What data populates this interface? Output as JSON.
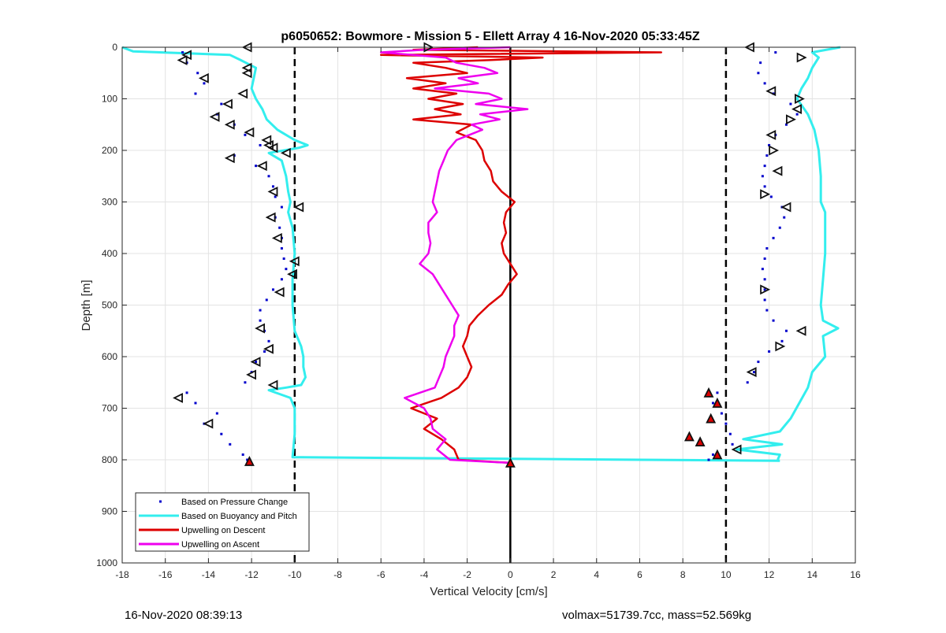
{
  "chart_data": {
    "type": "scatter",
    "title": "p6050652: Bowmore - Mission 5 - Ellett Array 4 16-Nov-2020 05:33:45Z",
    "xlabel": "Vertical Velocity [cm/s]",
    "ylabel": "Depth [m]",
    "xlim": [
      -18,
      16
    ],
    "ylim": [
      0,
      1000
    ],
    "y_reversed": true,
    "grid": true,
    "x_ticks": [
      "-18",
      "-16",
      "-14",
      "-12",
      "-10",
      "-8",
      "-6",
      "-4",
      "-2",
      "0",
      "2",
      "4",
      "6",
      "8",
      "10",
      "12",
      "14",
      "16"
    ],
    "y_ticks": [
      "0",
      "100",
      "200",
      "300",
      "400",
      "500",
      "600",
      "700",
      "800",
      "900",
      "1000"
    ],
    "reference_lines": [
      {
        "x": -10,
        "style": "dashed"
      },
      {
        "x": 0,
        "style": "solid"
      },
      {
        "x": 10,
        "style": "dashed"
      }
    ],
    "legend_position": "bottom-left",
    "series": [
      {
        "name": "Based on Pressure Change",
        "kind": "points",
        "color": "#0000cc",
        "descent": {
          "depth": [
            10,
            30,
            50,
            70,
            90,
            110,
            130,
            150,
            170,
            190,
            210,
            230,
            250,
            270,
            290,
            310,
            330,
            350,
            370,
            390,
            410,
            430,
            450,
            470,
            490,
            510,
            530,
            550,
            570,
            590,
            610,
            630,
            650,
            670,
            690,
            710,
            730,
            750,
            770,
            790,
            800
          ],
          "velocity": [
            -15.2,
            -15.0,
            -14.5,
            -14.2,
            -14.6,
            -13.4,
            -13.6,
            -12.8,
            -12.3,
            -11.6,
            -12.8,
            -11.8,
            -11.2,
            -11.0,
            -10.9,
            -10.6,
            -10.9,
            -10.7,
            -10.6,
            -10.6,
            -10.5,
            -10.4,
            -10.6,
            -11.0,
            -11.3,
            -11.6,
            -11.6,
            -11.4,
            -11.2,
            -11.4,
            -11.8,
            -12.0,
            -12.3,
            -15.0,
            -14.6,
            -13.6,
            -14.2,
            -13.4,
            -13.0,
            -12.4,
            -12.2
          ]
        },
        "ascent": {
          "depth": [
            10,
            30,
            50,
            70,
            90,
            110,
            130,
            150,
            170,
            190,
            210,
            230,
            250,
            270,
            290,
            310,
            330,
            350,
            370,
            390,
            410,
            430,
            450,
            470,
            490,
            510,
            530,
            550,
            570,
            590,
            610,
            630,
            650,
            670,
            690,
            710,
            730,
            750,
            770,
            790,
            800
          ],
          "velocity": [
            12.3,
            11.6,
            11.5,
            11.8,
            12.2,
            13.0,
            13.3,
            12.8,
            12.3,
            12.0,
            11.9,
            11.8,
            11.7,
            11.8,
            12.1,
            12.6,
            12.7,
            12.5,
            12.2,
            11.9,
            11.8,
            11.7,
            11.8,
            11.8,
            11.8,
            11.9,
            12.2,
            12.8,
            12.6,
            12.0,
            11.5,
            11.3,
            11.0,
            9.6,
            9.4,
            9.8,
            10.0,
            10.2,
            10.3,
            9.4,
            9.2
          ]
        }
      },
      {
        "name": "Based on Buoyancy and Pitch",
        "kind": "line",
        "color": "#33eeee",
        "descent": {
          "depth": [
            0,
            8,
            15,
            25,
            40,
            60,
            80,
            100,
            120,
            140,
            160,
            180,
            190,
            195,
            205,
            220,
            250,
            280,
            300,
            320,
            350,
            400,
            450,
            500,
            550,
            580,
            600,
            620,
            640,
            655,
            660,
            665,
            680,
            700,
            750,
            795,
            802
          ],
          "velocity": [
            -18.0,
            -17.5,
            -13.0,
            -12.5,
            -11.8,
            -11.9,
            -12.0,
            -11.8,
            -11.5,
            -11.3,
            -10.8,
            -10.0,
            -9.4,
            -9.8,
            -11.2,
            -10.6,
            -10.4,
            -10.3,
            -10.2,
            -10.3,
            -10.1,
            -10.0,
            -10.1,
            -10.1,
            -10.0,
            -9.7,
            -9.6,
            -9.6,
            -9.5,
            -9.7,
            -10.4,
            -11.2,
            -10.2,
            -10.0,
            -10.0,
            -10.1,
            12.5
          ]
        },
        "ascent": {
          "depth": [
            0,
            10,
            20,
            40,
            60,
            80,
            100,
            130,
            160,
            200,
            250,
            300,
            320,
            350,
            400,
            450,
            500,
            530,
            545,
            560,
            600,
            630,
            660,
            690,
            720,
            745,
            760,
            770,
            780,
            790,
            800
          ],
          "velocity": [
            15.3,
            14.0,
            14.3,
            14.0,
            13.8,
            13.5,
            13.3,
            13.8,
            14.1,
            14.3,
            14.4,
            14.4,
            14.6,
            14.6,
            14.6,
            14.5,
            14.4,
            14.5,
            15.2,
            14.5,
            14.6,
            14.0,
            13.8,
            13.4,
            13.0,
            12.5,
            10.8,
            12.6,
            10.5,
            12.5,
            12.4
          ]
        }
      },
      {
        "name": "Upwelling on Descent",
        "kind": "line",
        "color": "#dd0000",
        "depth": [
          0,
          5,
          10,
          15,
          20,
          25,
          30,
          40,
          50,
          60,
          70,
          80,
          90,
          100,
          110,
          120,
          130,
          140,
          150,
          165,
          180,
          200,
          220,
          240,
          260,
          280,
          300,
          320,
          340,
          360,
          380,
          400,
          420,
          440,
          460,
          480,
          500,
          520,
          540,
          560,
          580,
          600,
          620,
          640,
          660,
          680,
          700,
          720,
          740,
          760,
          780,
          800,
          806
        ],
        "velocity": [
          -1.5,
          -4.5,
          7.0,
          -6.0,
          1.5,
          -1.0,
          -4.5,
          -3.0,
          -2.0,
          -4.8,
          -3.0,
          -4.5,
          -2.5,
          -3.8,
          -2.2,
          -3.5,
          -2.3,
          -4.5,
          -1.8,
          -2.5,
          -1.6,
          -1.3,
          -1.2,
          -0.9,
          -0.8,
          -0.4,
          0.2,
          -0.2,
          -0.3,
          -0.2,
          -0.4,
          -0.3,
          0.0,
          0.3,
          -0.1,
          -0.4,
          -1.0,
          -1.5,
          -1.9,
          -2.0,
          -2.2,
          -2.0,
          -1.8,
          -2.0,
          -2.4,
          -3.2,
          -4.6,
          -3.4,
          -4.0,
          -3.2,
          -2.6,
          -2.4,
          0.0
        ]
      },
      {
        "name": "Upwelling on Ascent",
        "kind": "line",
        "color": "#ee00ee",
        "depth": [
          0,
          5,
          10,
          20,
          30,
          40,
          50,
          60,
          70,
          80,
          90,
          100,
          110,
          120,
          130,
          140,
          150,
          160,
          180,
          200,
          220,
          240,
          260,
          280,
          300,
          320,
          340,
          360,
          380,
          400,
          420,
          440,
          460,
          480,
          500,
          520,
          540,
          560,
          580,
          600,
          620,
          640,
          660,
          680,
          700,
          720,
          740,
          760,
          780,
          800,
          806
        ],
        "velocity": [
          0.0,
          -4.0,
          -6.0,
          -3.0,
          -2.5,
          -1.2,
          -0.6,
          -2.4,
          -1.5,
          -3.5,
          -1.0,
          -0.4,
          -1.6,
          0.8,
          -1.4,
          -0.5,
          -1.8,
          -1.3,
          -2.5,
          -2.9,
          -3.1,
          -3.3,
          -3.4,
          -3.5,
          -3.6,
          -3.4,
          -3.8,
          -3.8,
          -3.7,
          -3.8,
          -4.2,
          -3.6,
          -3.3,
          -3.0,
          -2.7,
          -2.4,
          -2.6,
          -2.6,
          -2.8,
          -3.0,
          -3.1,
          -3.3,
          -3.5,
          -4.9,
          -4.0,
          -3.7,
          -3.6,
          -3.0,
          -3.4,
          -2.8,
          0.0
        ]
      }
    ],
    "markers": {
      "descent_triangles": {
        "depth": [
          0,
          15,
          25,
          40,
          50,
          60,
          90,
          110,
          135,
          150,
          165,
          180,
          190,
          195,
          205,
          215,
          230,
          280,
          310,
          330,
          370,
          415,
          440,
          475,
          545,
          585,
          610,
          635,
          655,
          680,
          730,
          803
        ],
        "velocity": [
          -12.2,
          -15.0,
          -15.2,
          -12.2,
          -12.2,
          -14.2,
          -12.4,
          -13.1,
          -13.7,
          -13.0,
          -12.1,
          -11.3,
          -11.2,
          -11.0,
          -10.4,
          -13.0,
          -11.5,
          -11.0,
          -9.8,
          -11.1,
          -10.8,
          -10.0,
          -10.1,
          -10.7,
          -11.6,
          -11.2,
          -11.8,
          -12.0,
          -11.0,
          -15.4,
          -14.0,
          -12.1
        ],
        "red_filled_depth": [
          803
        ]
      },
      "ascent_triangles": {
        "depth": [
          0,
          20,
          85,
          100,
          120,
          140,
          170,
          200,
          240,
          285,
          310,
          470,
          550,
          580,
          630,
          670,
          690,
          720,
          755,
          765,
          780,
          790
        ],
        "velocity": [
          11.1,
          13.5,
          12.1,
          13.4,
          13.3,
          13.0,
          12.1,
          12.2,
          12.4,
          11.8,
          12.8,
          11.8,
          13.5,
          12.5,
          11.2,
          9.2,
          9.6,
          9.3,
          8.3,
          8.8,
          10.5,
          9.6
        ],
        "red_filled_depth": [
          670,
          690,
          720,
          755,
          765,
          790
        ]
      },
      "zero_marker": {
        "depth": 806,
        "velocity": 0
      },
      "top_marker": {
        "depth": 0,
        "velocity": -3.8
      }
    }
  },
  "footer": {
    "left": "16-Nov-2020 08:39:13",
    "right": "volmax=51739.7cc, mass=52.569kg"
  }
}
